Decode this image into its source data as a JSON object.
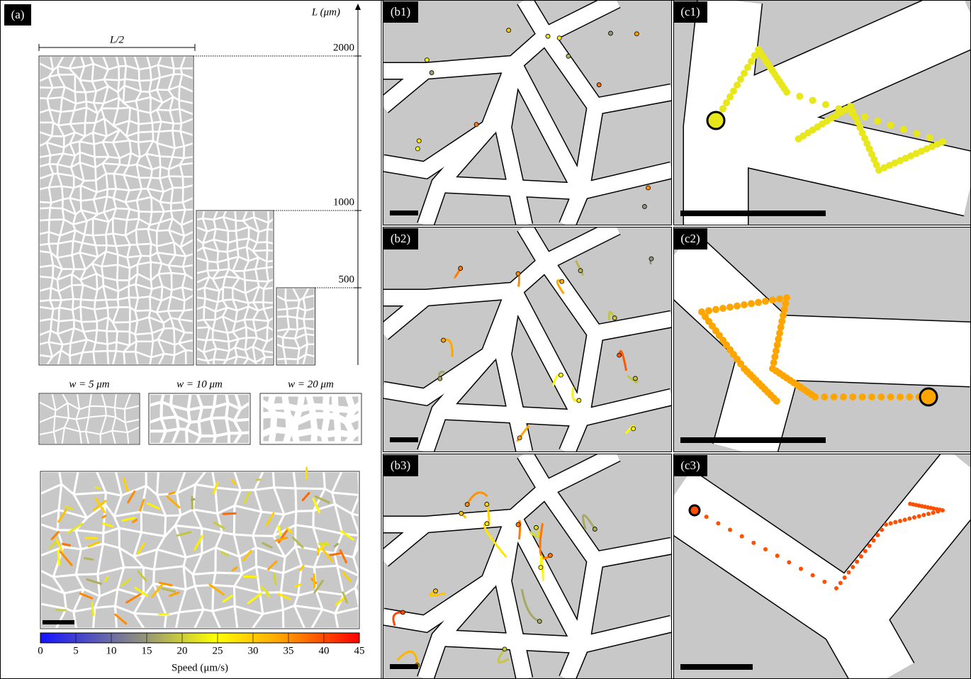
{
  "panel_a": {
    "label": "(a)",
    "axis": {
      "label": "L (μm)",
      "lim": [
        0,
        2000
      ],
      "ticks": [
        2000,
        1000,
        500
      ]
    },
    "half_label": "L/2",
    "widths": [
      "w = 5 μm",
      "w = 10 μm",
      "w = 20 μm"
    ],
    "colorbar": {
      "label": "Speed (μm/s)",
      "lim": [
        0,
        45
      ],
      "ticks": [
        0,
        5,
        10,
        15,
        20,
        25,
        30,
        35,
        40,
        45
      ]
    }
  },
  "panels_b": [
    "(b1)",
    "(b2)",
    "(b3)"
  ],
  "panels_c": [
    "(c1)",
    "(c2)",
    "(c3)"
  ]
}
